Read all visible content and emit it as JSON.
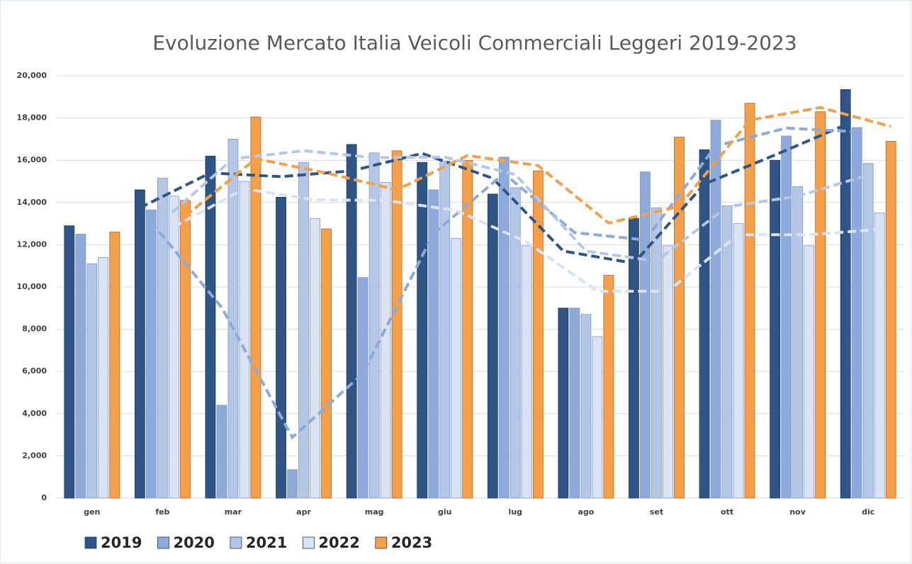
{
  "chart_data": {
    "type": "bar",
    "title": "Evoluzione Mercato Italia Veicoli Commerciali Leggeri 2019-2023",
    "categories": [
      "gen",
      "feb",
      "mar",
      "apr",
      "mag",
      "giu",
      "lug",
      "ago",
      "set",
      "ott",
      "nov",
      "dic"
    ],
    "series": [
      {
        "name": "2019",
        "color": "#2f5587",
        "values": [
          12900,
          14600,
          16200,
          14250,
          16750,
          15900,
          14400,
          9000,
          13250,
          16500,
          16000,
          19350
        ]
      },
      {
        "name": "2020",
        "color": "#8eaadb",
        "values": [
          12500,
          13650,
          4400,
          1350,
          10450,
          14600,
          16150,
          9000,
          15450,
          17900,
          17150,
          17550
        ]
      },
      {
        "name": "2021",
        "color": "#b4c7e7",
        "values": [
          11100,
          15150,
          17000,
          15900,
          16350,
          15950,
          14700,
          8700,
          13750,
          13850,
          14750,
          15850
        ]
      },
      {
        "name": "2022",
        "color": "#dae3f3",
        "values": [
          11400,
          14300,
          15000,
          13250,
          14950,
          12300,
          11950,
          7650,
          11950,
          13000,
          11950,
          13500
        ]
      },
      {
        "name": "2023",
        "color": "#f4a04a",
        "values": [
          12600,
          14100,
          18050,
          12750,
          16450,
          16000,
          15500,
          10550,
          17100,
          18700,
          18300,
          16900
        ]
      }
    ],
    "ylim": [
      0,
      20000
    ],
    "yticks": [
      {
        "value": 0,
        "label": "0"
      },
      {
        "value": 2000,
        "label": "2,000"
      },
      {
        "value": 4000,
        "label": "4,000"
      },
      {
        "value": 6000,
        "label": "6,000"
      },
      {
        "value": 8000,
        "label": "8,000"
      },
      {
        "value": 10000,
        "label": "10,000"
      },
      {
        "value": 12000,
        "label": "12,000"
      },
      {
        "value": 14000,
        "label": "14,000"
      },
      {
        "value": 16000,
        "label": "16,000"
      },
      {
        "value": 18000,
        "label": "18,000"
      },
      {
        "value": 20000,
        "label": "20,000"
      }
    ],
    "grid": true,
    "legend": "bottom-left",
    "trendline": {
      "type": "moving_average",
      "period": 2,
      "dashed": true
    }
  }
}
